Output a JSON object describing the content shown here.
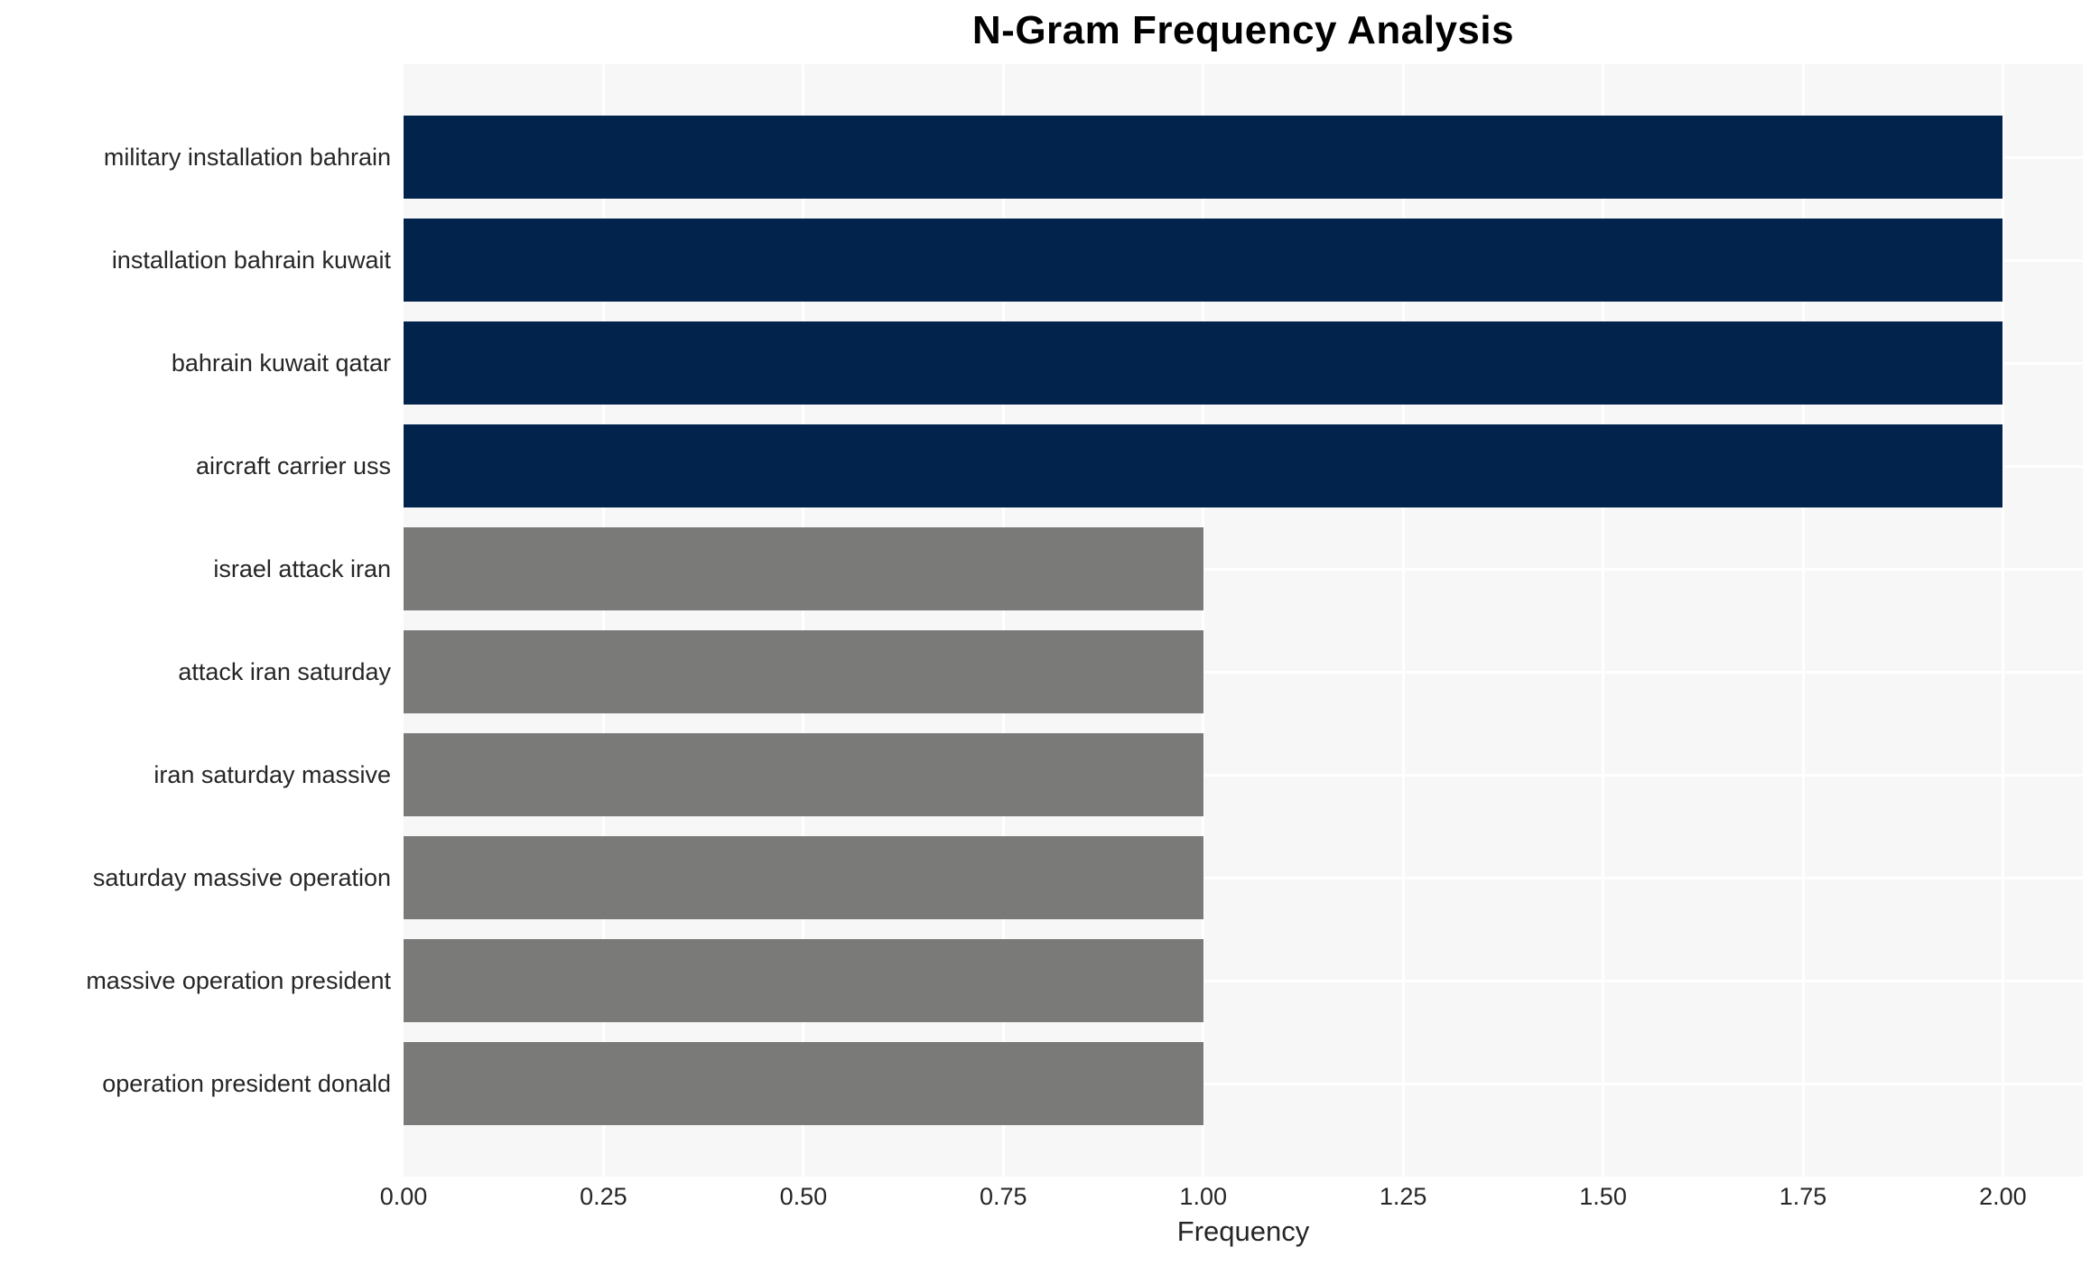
{
  "chart_data": {
    "type": "bar",
    "orientation": "horizontal",
    "title": "N-Gram Frequency Analysis",
    "xlabel": "Frequency",
    "ylabel": "",
    "categories": [
      "military installation bahrain",
      "installation bahrain kuwait",
      "bahrain kuwait qatar",
      "aircraft carrier uss",
      "israel attack iran",
      "attack iran saturday",
      "iran saturday massive",
      "saturday massive operation",
      "massive operation president",
      "operation president donald"
    ],
    "values": [
      2,
      2,
      2,
      2,
      1,
      1,
      1,
      1,
      1,
      1
    ],
    "bar_colors": [
      "#02234C",
      "#02234C",
      "#02234C",
      "#02234C",
      "#7A7A78",
      "#7A7A78",
      "#7A7A78",
      "#7A7A78",
      "#7A7A78",
      "#7A7A78"
    ],
    "xlim": [
      0,
      2.1
    ],
    "xticks": [
      0.0,
      0.25,
      0.5,
      0.75,
      1.0,
      1.25,
      1.5,
      1.75,
      2.0
    ],
    "xtick_labels": [
      "0.00",
      "0.25",
      "0.50",
      "0.75",
      "1.00",
      "1.25",
      "1.50",
      "1.75",
      "2.00"
    ],
    "legend": "none",
    "grid": {
      "vertical_at_xticks": true,
      "horizontal_at_band_centers": true,
      "color": "#FFFFFF"
    },
    "colors": {
      "plot_background": "#F7F7F8",
      "page_background": "#FFFFFF",
      "bar_primary": "#02234C",
      "bar_secondary": "#7A7A78",
      "text": "#262626",
      "title_text": "#000000",
      "gridline": "#FFFFFF"
    }
  }
}
